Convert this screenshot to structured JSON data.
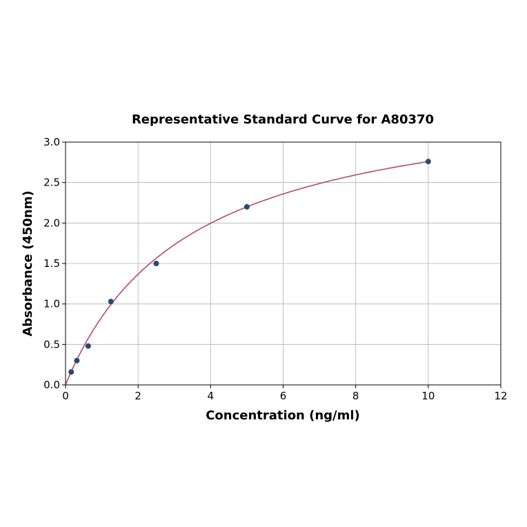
{
  "chart_data": {
    "type": "scatter",
    "title": "Representative Standard Curve for A80370",
    "xlabel": "Concentration (ng/ml)",
    "ylabel": "Absorbance (450nm)",
    "xlim": [
      0,
      12
    ],
    "ylim": [
      0,
      3.0
    ],
    "xticks": [
      "0",
      "2",
      "4",
      "6",
      "8",
      "10",
      "12"
    ],
    "yticks": [
      "0.0",
      "0.5",
      "1.0",
      "1.5",
      "2.0",
      "2.5",
      "3.0"
    ],
    "grid": true,
    "points": {
      "x": [
        0.156,
        0.312,
        0.625,
        1.25,
        2.5,
        5,
        10
      ],
      "y": [
        0.16,
        0.3,
        0.48,
        1.03,
        1.5,
        2.2,
        2.76
      ]
    },
    "fit_curve": {
      "x_range": [
        0,
        10
      ]
    },
    "colors": {
      "points": "#2b4a6f",
      "curve": "#b04a6e",
      "grid": "#b0b0b0"
    }
  }
}
